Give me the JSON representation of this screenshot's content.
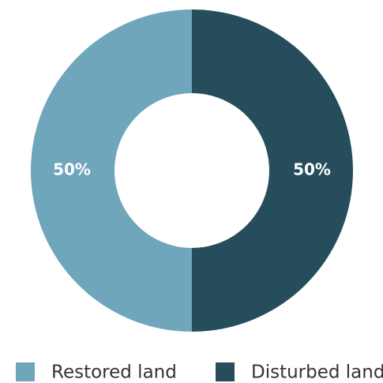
{
  "chart_data": {
    "type": "pie",
    "donut": true,
    "categories": [
      "Restored land",
      "Disturbed land"
    ],
    "values": [
      50,
      50
    ],
    "value_labels": [
      "50%",
      "50%"
    ],
    "colors": [
      "#6fa6bb",
      "#264d5c"
    ]
  }
}
